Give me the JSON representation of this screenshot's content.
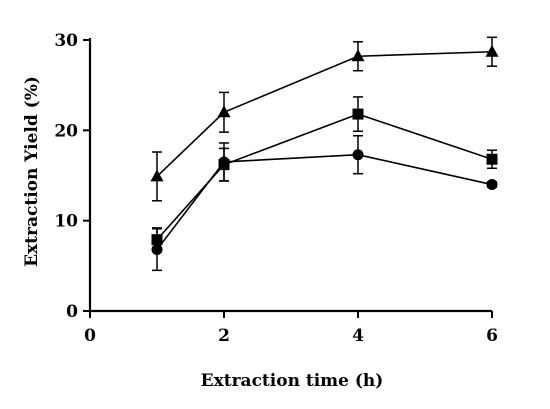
{
  "chart_data": {
    "type": "line",
    "xlabel": "Extraction time (h)",
    "ylabel": "Extraction Yield (%)",
    "xlim": [
      0,
      6
    ],
    "ylim": [
      0,
      30
    ],
    "xticks": [
      0,
      2,
      4,
      6
    ],
    "yticks": [
      0,
      10,
      20,
      30
    ],
    "grid": false,
    "legend": "none",
    "x": [
      1,
      2,
      4,
      6
    ],
    "series": [
      {
        "marker": "triangle",
        "values": [
          14.9,
          22.0,
          28.2,
          28.7
        ],
        "errors": [
          2.7,
          2.2,
          1.6,
          1.6
        ]
      },
      {
        "marker": "square",
        "values": [
          7.9,
          16.2,
          21.8,
          16.8
        ],
        "errors": [
          1.3,
          1.8,
          1.9,
          1.0
        ]
      },
      {
        "marker": "circle",
        "values": [
          6.8,
          16.5,
          17.3,
          14.0
        ],
        "errors": [
          2.3,
          2.1,
          2.1,
          0.3
        ]
      }
    ],
    "colors": {
      "ink": "#000000",
      "background": "#ffffff"
    }
  }
}
